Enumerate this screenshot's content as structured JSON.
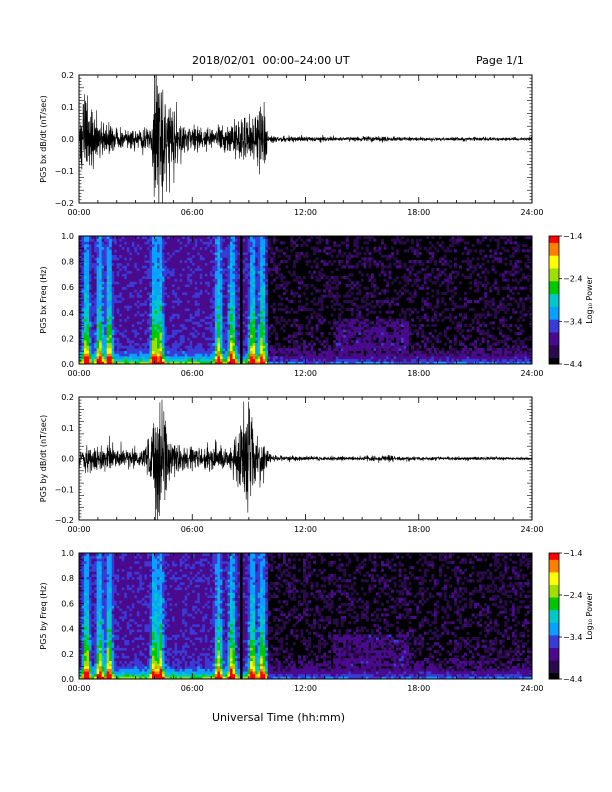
{
  "page": {
    "header": "2018/02/01  00:00–24:00 UT",
    "page_label": "Page 1/1",
    "footer_xlabel": "Universal Time (hh:mm)"
  },
  "colors": {
    "waveform": "#000000",
    "axis": "#000000",
    "colormap": [
      "#000000",
      "#2a0a4a",
      "#4a0a8c",
      "#3a3ad6",
      "#0aa0ff",
      "#00c8c8",
      "#00c800",
      "#a0e000",
      "#ffff00",
      "#ff8000",
      "#ff0000"
    ]
  },
  "chart_data": [
    {
      "type": "line",
      "panel": "bx-waveform",
      "ylabel": "PG5 bx dB/dt (nT/sec)",
      "xlim": [
        0,
        24
      ],
      "ylim": [
        -0.2,
        0.2
      ],
      "y_ticks": [
        "0.2",
        "0.1",
        "0.0",
        "−0.1",
        "−0.2"
      ],
      "y_tick_values": [
        0.2,
        0.1,
        0.0,
        -0.1,
        -0.2
      ],
      "x_ticks": [
        "00:00",
        "06:00",
        "12:00",
        "18:00",
        "24:00"
      ],
      "x_tick_values": [
        0,
        6,
        12,
        18,
        24
      ],
      "envelope": [
        {
          "x": 0.0,
          "amp": 0.02
        },
        {
          "x": 0.3,
          "amp": 0.16
        },
        {
          "x": 0.6,
          "amp": 0.1
        },
        {
          "x": 1.0,
          "amp": 0.06
        },
        {
          "x": 1.5,
          "amp": 0.05
        },
        {
          "x": 2.0,
          "amp": 0.035
        },
        {
          "x": 3.0,
          "amp": 0.03
        },
        {
          "x": 3.8,
          "amp": 0.04
        },
        {
          "x": 4.0,
          "amp": 0.2
        },
        {
          "x": 4.3,
          "amp": 0.2
        },
        {
          "x": 4.7,
          "amp": 0.14
        },
        {
          "x": 5.2,
          "amp": 0.07
        },
        {
          "x": 6.0,
          "amp": 0.04
        },
        {
          "x": 7.0,
          "amp": 0.03
        },
        {
          "x": 8.0,
          "amp": 0.045
        },
        {
          "x": 8.5,
          "amp": 0.08
        },
        {
          "x": 9.0,
          "amp": 0.06
        },
        {
          "x": 9.5,
          "amp": 0.12
        },
        {
          "x": 9.8,
          "amp": 0.11
        },
        {
          "x": 10.0,
          "amp": 0.01
        },
        {
          "x": 14.0,
          "amp": 0.006
        },
        {
          "x": 16.5,
          "amp": 0.01
        },
        {
          "x": 17.0,
          "amp": 0.006
        },
        {
          "x": 24.0,
          "amp": 0.005
        }
      ]
    },
    {
      "type": "heatmap",
      "panel": "bx-spectrogram",
      "ylabel": "PG5 bx Freq (Hz)",
      "xlim": [
        0,
        24
      ],
      "ylim": [
        0.0,
        1.0
      ],
      "y_ticks": [
        "1.0",
        "0.8",
        "0.6",
        "0.4",
        "0.2",
        "0.0"
      ],
      "y_tick_values": [
        1.0,
        0.8,
        0.6,
        0.4,
        0.2,
        0.0
      ],
      "x_ticks": [
        "00:00",
        "06:00",
        "12:00",
        "18:00",
        "24:00"
      ],
      "x_tick_values": [
        0,
        6,
        12,
        18,
        24
      ],
      "colorbar": {
        "label": "Log₁₀ Power",
        "range": [
          -4.4,
          -1.4
        ],
        "ticks": [
          "−1.4",
          "−2.4",
          "−3.4",
          "−4.4"
        ],
        "tick_values": [
          -1.4,
          -2.4,
          -3.4,
          -4.4
        ]
      },
      "bursts": [
        0.4,
        1.1,
        1.6,
        4.0,
        4.3,
        7.4,
        8.1,
        9.2,
        9.7
      ],
      "gap_x": 8.6,
      "active_until": 10.0
    },
    {
      "type": "line",
      "panel": "by-waveform",
      "ylabel": "PG5 by dB/dt (nT/sec)",
      "xlim": [
        0,
        24
      ],
      "ylim": [
        -0.2,
        0.2
      ],
      "y_ticks": [
        "0.2",
        "0.1",
        "0.0",
        "−0.1",
        "−0.2"
      ],
      "y_tick_values": [
        0.2,
        0.1,
        0.0,
        -0.1,
        -0.2
      ],
      "x_ticks": [
        "00:00",
        "06:00",
        "12:00",
        "18:00",
        "24:00"
      ],
      "x_tick_values": [
        0,
        6,
        12,
        18,
        24
      ],
      "envelope": [
        {
          "x": 0.0,
          "amp": 0.02
        },
        {
          "x": 0.3,
          "amp": 0.05
        },
        {
          "x": 1.0,
          "amp": 0.04
        },
        {
          "x": 1.5,
          "amp": 0.045
        },
        {
          "x": 2.5,
          "amp": 0.03
        },
        {
          "x": 3.5,
          "amp": 0.03
        },
        {
          "x": 4.0,
          "amp": 0.16
        },
        {
          "x": 4.3,
          "amp": 0.21
        },
        {
          "x": 4.7,
          "amp": 0.08
        },
        {
          "x": 5.5,
          "amp": 0.04
        },
        {
          "x": 7.0,
          "amp": 0.035
        },
        {
          "x": 8.0,
          "amp": 0.045
        },
        {
          "x": 8.5,
          "amp": 0.08
        },
        {
          "x": 8.9,
          "amp": 0.2
        },
        {
          "x": 9.3,
          "amp": 0.1
        },
        {
          "x": 9.8,
          "amp": 0.05
        },
        {
          "x": 10.2,
          "amp": 0.01
        },
        {
          "x": 14.0,
          "amp": 0.006
        },
        {
          "x": 16.5,
          "amp": 0.01
        },
        {
          "x": 17.0,
          "amp": 0.006
        },
        {
          "x": 24.0,
          "amp": 0.005
        }
      ]
    },
    {
      "type": "heatmap",
      "panel": "by-spectrogram",
      "ylabel": "PG5 by Freq (Hz)",
      "xlim": [
        0,
        24
      ],
      "ylim": [
        0.0,
        1.0
      ],
      "y_ticks": [
        "1.0",
        "0.8",
        "0.6",
        "0.4",
        "0.2",
        "0.0"
      ],
      "y_tick_values": [
        1.0,
        0.8,
        0.6,
        0.4,
        0.2,
        0.0
      ],
      "x_ticks": [
        "00:00",
        "06:00",
        "12:00",
        "18:00",
        "24:00"
      ],
      "x_tick_values": [
        0,
        6,
        12,
        18,
        24
      ],
      "colorbar": {
        "label": "Log₁₀ Power",
        "range": [
          -4.4,
          -1.4
        ],
        "ticks": [
          "−1.4",
          "−2.4",
          "−3.4",
          "−4.4"
        ],
        "tick_values": [
          -1.4,
          -2.4,
          -3.4,
          -4.4
        ]
      },
      "bursts": [
        0.4,
        1.1,
        1.6,
        4.0,
        4.3,
        7.4,
        8.1,
        9.2,
        9.7
      ],
      "gap_x": 8.6,
      "active_until": 10.0
    }
  ]
}
